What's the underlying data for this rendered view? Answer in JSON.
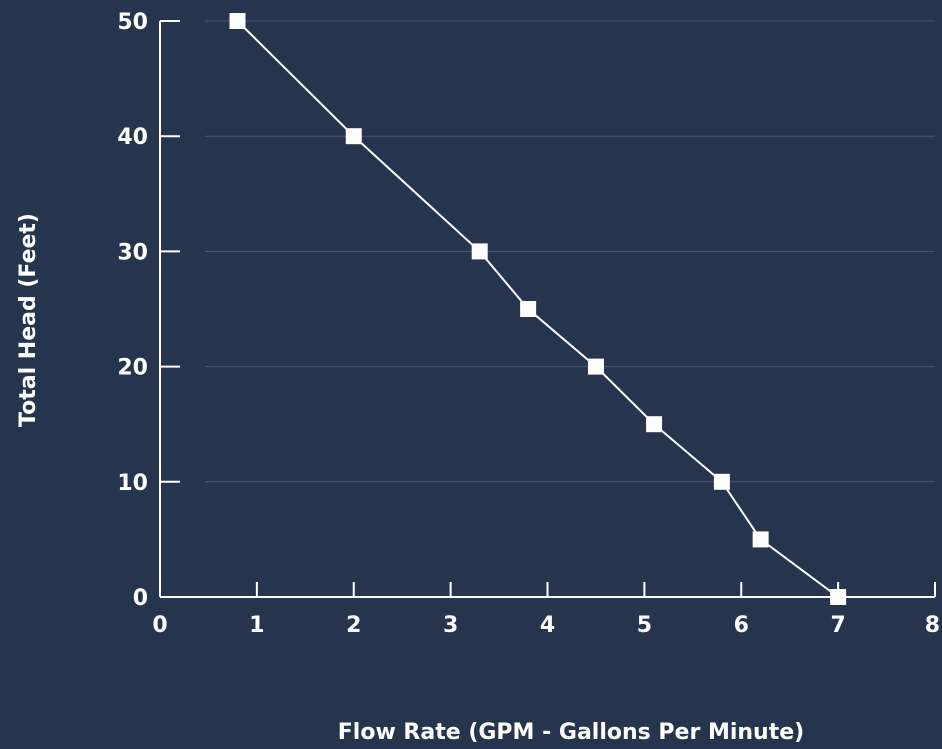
{
  "chart_data": {
    "type": "line",
    "xlabel": "Flow Rate (GPM - Gallons Per Minute)",
    "ylabel": "Total Head (Feet)",
    "xlim": [
      0,
      8
    ],
    "ylim": [
      0,
      50
    ],
    "x_ticks": [
      "0",
      "1",
      "2",
      "3",
      "4",
      "5",
      "6",
      "7",
      "8"
    ],
    "y_ticks": [
      "0",
      "10",
      "20",
      "30",
      "40",
      "50"
    ],
    "grid": "horizontal",
    "series": [
      {
        "x": [
          0.8,
          2.0,
          3.3,
          3.8,
          4.5,
          5.1,
          5.8,
          6.2,
          7.0
        ],
        "y": [
          50,
          40,
          30,
          25,
          20,
          15,
          10,
          5,
          0
        ]
      }
    ],
    "colors": {
      "background": "#27344d",
      "line": "#ffffff",
      "marker": "#ffffff",
      "grid": "#4a5670",
      "axis": "#ffffff"
    }
  }
}
